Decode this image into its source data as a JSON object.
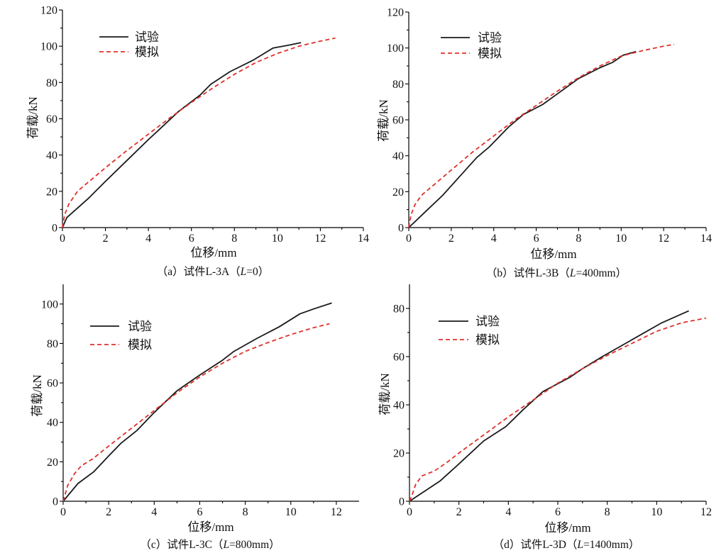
{
  "chart_data": [
    {
      "type": "line",
      "caption": {
        "pre": "（a）试件L-3A（",
        "var": "L",
        "post": "=0）"
      },
      "xlabel": "位移/mm",
      "ylabel": "荷载/kN",
      "xlim": [
        0,
        14
      ],
      "ylim": [
        0,
        120
      ],
      "xticks": [
        0,
        2,
        4,
        6,
        8,
        10,
        12,
        14
      ],
      "yticks": [
        0,
        20,
        40,
        60,
        80,
        100,
        120
      ],
      "grid": false,
      "legend": "top-left",
      "series": [
        {
          "name": "试验",
          "color": "#1a1a1a",
          "style": "solid",
          "x": [
            0,
            0.2,
            1.2,
            2,
            3,
            4,
            4.5,
            5.4,
            6.4,
            6.9,
            7.8,
            8.9,
            9.8,
            10.5,
            11.1
          ],
          "y": [
            0,
            5.5,
            16,
            25.5,
            37,
            48.5,
            54,
            64,
            73,
            79,
            86,
            92.5,
            99,
            100.5,
            102
          ]
        },
        {
          "name": "模拟",
          "color": "#e0302b",
          "style": "dashed",
          "x": [
            0,
            0.1,
            0.3,
            0.7,
            1.2,
            2,
            3,
            4,
            5,
            6,
            7,
            8,
            9,
            10,
            11,
            12,
            12.7
          ],
          "y": [
            0,
            7,
            13,
            20,
            25,
            33,
            42.5,
            51.5,
            60.5,
            69,
            77,
            84.5,
            91,
            96,
            100,
            102.8,
            104.5
          ]
        }
      ]
    },
    {
      "type": "line",
      "caption": {
        "pre": "（b）试件L-3B（",
        "var": "L",
        "post": "=400mm）"
      },
      "xlabel": "位移/mm",
      "ylabel": "荷载/kN",
      "xlim": [
        0,
        14
      ],
      "ylim": [
        0,
        120
      ],
      "xticks": [
        0,
        2,
        4,
        6,
        8,
        10,
        12,
        14
      ],
      "yticks": [
        0,
        20,
        40,
        60,
        80,
        100,
        120
      ],
      "grid": false,
      "legend": "top-left",
      "series": [
        {
          "name": "试验",
          "color": "#1a1a1a",
          "style": "solid",
          "x": [
            0,
            0.8,
            1.6,
            2.4,
            3.2,
            3.8,
            4.7,
            5.4,
            6.3,
            7,
            8,
            9,
            9.6,
            10.1,
            10.7
          ],
          "y": [
            0,
            9,
            18,
            28.5,
            39,
            45,
            56,
            63,
            68.5,
            74.5,
            83,
            89,
            92,
            96,
            98
          ]
        },
        {
          "name": "模拟",
          "color": "#e0302b",
          "style": "dashed",
          "x": [
            0,
            0.1,
            0.3,
            0.6,
            1,
            1.6,
            2,
            3,
            4,
            5,
            6,
            7,
            8,
            9,
            10,
            11,
            12,
            12.5
          ],
          "y": [
            0,
            7,
            13,
            18,
            22,
            28,
            32,
            42,
            51,
            60,
            68,
            76,
            83.5,
            90,
            95.5,
            98.5,
            101,
            102
          ]
        }
      ]
    },
    {
      "type": "line",
      "caption": {
        "pre": "（c）试件L-3C（",
        "var": "L",
        "post": "=800mm）"
      },
      "xlabel": "位移/mm",
      "ylabel": "荷载/kN",
      "xlim": [
        0,
        13
      ],
      "ylim": [
        0,
        110
      ],
      "xticks": [
        0,
        2,
        4,
        6,
        8,
        10,
        12
      ],
      "yticks": [
        0,
        20,
        40,
        60,
        80,
        100
      ],
      "grid": false,
      "legend": "top-left",
      "series": [
        {
          "name": "试验",
          "color": "#1a1a1a",
          "style": "solid",
          "x": [
            0,
            0.65,
            1.35,
            2,
            2.55,
            3.25,
            4,
            5,
            6,
            7,
            7.5,
            8.5,
            9.5,
            10.4,
            11,
            11.8
          ],
          "y": [
            0,
            9,
            15,
            23,
            29.5,
            36,
            45,
            56,
            64,
            71.5,
            76,
            82.5,
            88.5,
            95,
            97.5,
            100.5
          ]
        },
        {
          "name": "模拟",
          "color": "#e0302b",
          "style": "dashed",
          "x": [
            0,
            0.2,
            0.5,
            0.8,
            1.3,
            2,
            3,
            4,
            5,
            6,
            7,
            8,
            9,
            10,
            11,
            11.7
          ],
          "y": [
            0,
            8,
            14,
            18,
            21.5,
            28,
            37,
            46,
            55,
            63,
            70,
            76,
            80.5,
            84.5,
            88,
            90
          ]
        }
      ]
    },
    {
      "type": "line",
      "caption": {
        "pre": "（d）试件L-3D（",
        "var": "L",
        "post": "=1400mm）"
      },
      "xlabel": "位移/mm",
      "ylabel": "荷载/kN",
      "xlim": [
        0,
        12
      ],
      "ylim": [
        0,
        90
      ],
      "xticks": [
        0,
        2,
        4,
        6,
        8,
        10,
        12
      ],
      "yticks": [
        0,
        20,
        40,
        60,
        80
      ],
      "grid": false,
      "legend": "top-left",
      "series": [
        {
          "name": "试验",
          "color": "#1a1a1a",
          "style": "solid",
          "x": [
            0,
            1.25,
            2,
            3,
            3.9,
            4.6,
            5.4,
            6.5,
            7,
            7.8,
            9,
            10.2,
            11.3
          ],
          "y": [
            0,
            8.5,
            15.5,
            25,
            31,
            38,
            45.5,
            51.5,
            55,
            60,
            67,
            74,
            79
          ]
        },
        {
          "name": "模拟",
          "color": "#e0302b",
          "style": "dashed",
          "x": [
            0,
            0.12,
            0.25,
            0.5,
            1,
            1.5,
            2,
            3,
            4,
            5,
            6,
            7,
            8,
            9,
            10,
            11,
            12
          ],
          "y": [
            0,
            3,
            7,
            10.5,
            12.5,
            16,
            20,
            27.5,
            35,
            42,
            49,
            55,
            60.5,
            65.5,
            70.5,
            74,
            76
          ]
        }
      ]
    }
  ]
}
